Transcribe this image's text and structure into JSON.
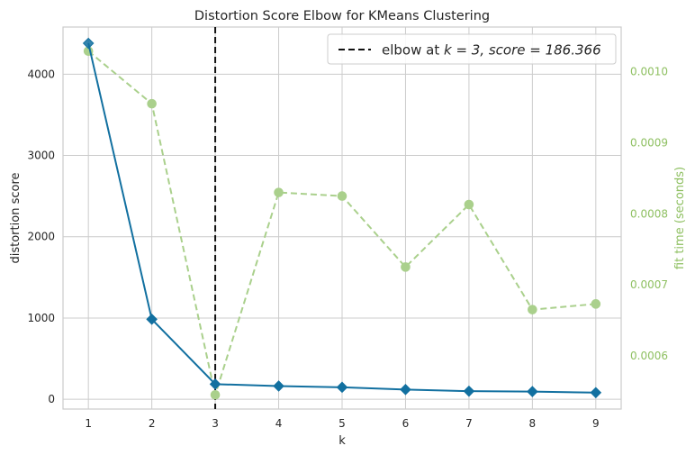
{
  "chart_data": {
    "type": "line",
    "title": "Distortion Score Elbow for KMeans Clustering",
    "xlabel": "k",
    "ylabel": "distortion score",
    "y2label": "fit time (seconds)",
    "x": [
      1,
      2,
      3,
      4,
      5,
      6,
      7,
      8,
      9
    ],
    "xticks": [
      "1",
      "2",
      "3",
      "4",
      "5",
      "6",
      "7",
      "8",
      "9"
    ],
    "yticks": [
      "0",
      "1000",
      "2000",
      "3000",
      "4000"
    ],
    "yticks_values": [
      0,
      1000,
      2000,
      3000,
      4000
    ],
    "y2ticks": [
      "0.0006",
      "0.0007",
      "0.0008",
      "0.0009",
      "0.0010"
    ],
    "y2ticks_values": [
      0.0006,
      0.0007,
      0.0008,
      0.0009,
      0.001
    ],
    "xlim": [
      0.6,
      9.4
    ],
    "ylim": [
      -120,
      4580
    ],
    "y2lim": [
      0.000525,
      0.001063
    ],
    "grid": true,
    "series": [
      {
        "name": "distortion score",
        "axis": "left",
        "color": "#1270a0",
        "values": [
          4380,
          985,
          186.366,
          163,
          148,
          120,
          100,
          95,
          82
        ]
      },
      {
        "name": "fit time (seconds)",
        "axis": "right",
        "color": "#aad08c",
        "values": [
          0.001029,
          0.000955,
          0.000545,
          0.00083,
          0.000825,
          0.000725,
          0.000813,
          0.000665,
          0.000673
        ]
      }
    ],
    "elbow": {
      "k": 3,
      "score": 186.366,
      "legend_prefix": "elbow at ",
      "legend_text": "k = 3, score = 186.366"
    },
    "legend_position": "top-right",
    "colors": {
      "axis_right": "#8fc062",
      "grid": "#cccccc",
      "elbow_line": "#111111"
    }
  }
}
